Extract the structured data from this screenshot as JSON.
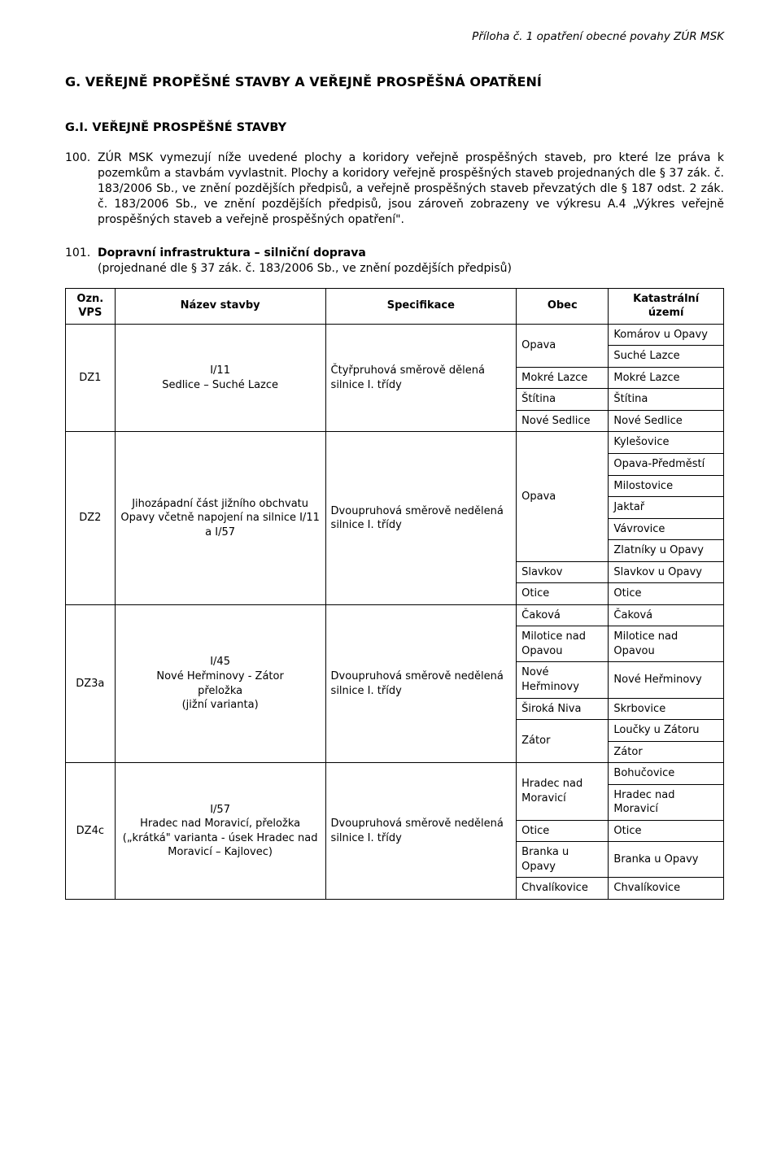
{
  "header": {
    "right": "Příloha č. 1 opatření obecné povahy ZÚR MSK"
  },
  "section": {
    "g_title": "G. VEŘEJNĚ PROPĚŠNÉ STAVBY A VEŘEJNĚ PROSPĚŠNÁ OPATŘENÍ",
    "g_i_title": "G.I. VEŘEJNĚ PROSPĚŠNÉ STAVBY"
  },
  "paras": {
    "p100_num": "100.",
    "p100_txt": "ZÚR MSK vymezují níže uvedené plochy a koridory veřejně prospěšných staveb, pro které lze práva k pozemkům a stavbám vyvlastnit. Plochy a koridory veřejně prospěšných staveb projednaných dle § 37 zák. č. 183/2006 Sb., ve znění pozdějších předpisů, a veřejně prospěšných staveb převzatých dle § 187 odst. 2 zák. č. 183/2006 Sb., ve znění pozdějších předpisů, jsou zároveň zobrazeny ve výkresu A.4 „Výkres veřejně prospěšných staveb a veřejně prospěšných opatření\".",
    "p101_num": "101.",
    "p101_title": "Dopravní infrastruktura – silniční doprava",
    "p101_sub": "(projednané dle § 37 zák. č. 183/2006 Sb., ve znění pozdějších předpisů)"
  },
  "table": {
    "headers": {
      "ozn": "Ozn.\nVPS",
      "nazev": "Název stavby",
      "spec": "Specifikace",
      "obec": "Obec",
      "ku": "Katastrální území"
    },
    "rows": {
      "dz1": {
        "ozn": "DZ1",
        "nazev": "I/11\nSedlice – Suché Lazce",
        "spec": "Čtyřpruhová směrově dělená silnice I. třídy",
        "obec": [
          "Opava",
          "",
          "Mokré Lazce",
          "Štítina",
          "Nové Sedlice"
        ],
        "ku": [
          "Komárov u Opavy",
          "Suché Lazce",
          "Mokré Lazce",
          "Štítina",
          "Nové Sedlice"
        ]
      },
      "dz2": {
        "ozn": "DZ2",
        "nazev": "Jihozápadní část jižního obchvatu Opavy včetně napojení na silnice I/11 a I/57",
        "spec": "Dvoupruhová směrově nedělená silnice I. třídy",
        "obec": [
          "Opava",
          "",
          "",
          "",
          "",
          "",
          "Slavkov",
          "Otice"
        ],
        "ku": [
          "Kylešovice",
          "Opava-Předměstí",
          "Milostovice",
          "Jaktař",
          "Vávrovice",
          "Zlatníky u Opavy",
          "Slavkov u Opavy",
          "Otice"
        ]
      },
      "dz3a": {
        "ozn": "DZ3a",
        "nazev": "I/45\nNové Heřminovy - Zátor\npřeložka\n(jižní varianta)",
        "spec": "Dvoupruhová směrově nedělená silnice I. třídy",
        "obec": [
          "Čaková",
          "Milotice nad Opavou",
          "Nové Heřminovy",
          "Široká Niva",
          "Zátor",
          ""
        ],
        "ku": [
          "Čaková",
          "Milotice nad Opavou",
          "Nové Heřminovy",
          "Skrbovice",
          "Loučky u Zátoru",
          "Zátor"
        ]
      },
      "dz4c": {
        "ozn": "DZ4c",
        "nazev": "I/57\nHradec nad Moravicí, přeložka („krátká\" varianta - úsek Hradec nad Moravicí – Kajlovec)",
        "spec": "Dvoupruhová směrově nedělená silnice I. třídy",
        "obec": [
          "Hradec nad Moravicí",
          "",
          "Otice",
          "Branka u Opavy",
          "Chvalíkovice"
        ],
        "ku": [
          "Bohučovice",
          "Hradec nad Moravicí",
          "Otice",
          "Branka u Opavy",
          "Chvalíkovice"
        ]
      }
    }
  }
}
